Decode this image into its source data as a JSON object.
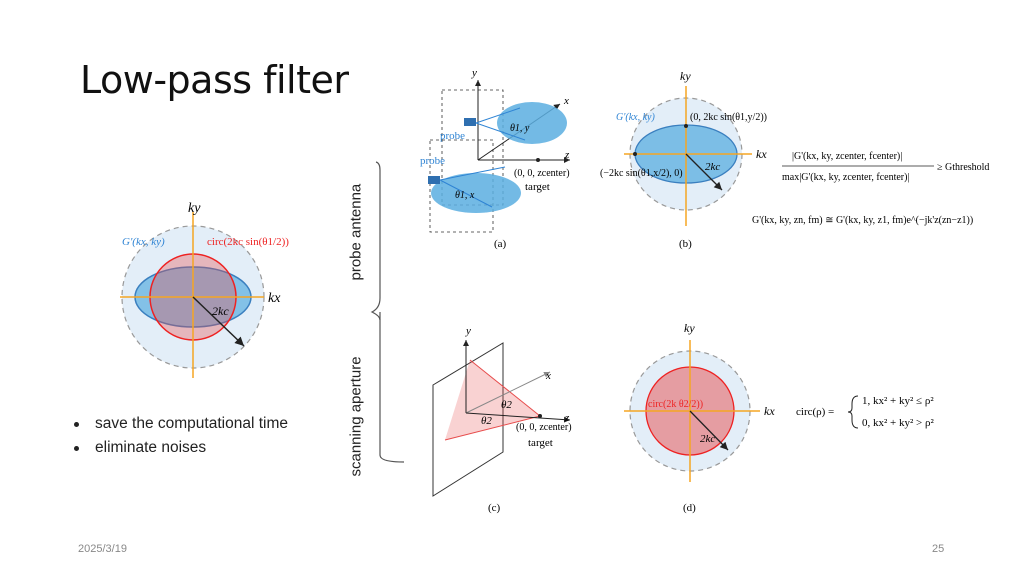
{
  "title": "Low-pass filter",
  "bullets": [
    "save the computational time",
    "eliminate noises"
  ],
  "footer": {
    "date": "2025/3/19",
    "page": "25"
  },
  "brace_labels": {
    "top": "probe antenna",
    "bottom": "scanning aperture"
  },
  "figure_main": {
    "ky": "ky",
    "kx": "kx",
    "g_label": "G'(kx, ky)",
    "circ_label": "circ(2kc sin(θ1/2))",
    "radius": "2kc"
  },
  "panel_a": {
    "caption": "(a)",
    "y": "y",
    "x": "x",
    "z": "z",
    "probe1": "probe",
    "probe2": "probe",
    "theta_y": "θ1, y",
    "theta_x": "θ1, x",
    "origin": "(0, 0, zcenter)",
    "target": "target"
  },
  "panel_b": {
    "caption": "(b)",
    "ky": "ky",
    "kx": "kx",
    "g_label": "G'(kx, ky)",
    "top_point": "(0, 2kc sin(θ1,y/2))",
    "left_point": "(−2kc sin(θ1,x/2), 0)",
    "radius": "2kc",
    "eq1_num": "|G'(kx, ky, zcenter, fcenter)|",
    "eq1_den": "max|G'(kx, ky, zcenter, fcenter)|",
    "eq1_rhs": "≥ Gthreshold",
    "eq2": "G'(kx, ky, zn, fm) ≅ G'(kx, ky, z1, fm)e^(−jk'z(zn−z1))"
  },
  "panel_c": {
    "caption": "(c)",
    "y": "y",
    "x": "x",
    "z": "z",
    "theta2a": "θ2",
    "theta2b": "θ2",
    "origin": "(0, 0, zcenter)",
    "target": "target"
  },
  "panel_d": {
    "caption": "(d)",
    "ky": "ky",
    "kx": "kx",
    "circ_label": "circ(2k θ2/2))",
    "radius": "2kc",
    "eq_lhs": "circ(ρ) =",
    "case1": "1,  kx² + ky² ≤ ρ²",
    "case2": "0,  kx² + ky² > ρ²"
  },
  "colors": {
    "blue": "#5aaee0",
    "red": "#e74c4c",
    "orange": "#f5a623",
    "pale": "#e3eef8"
  }
}
